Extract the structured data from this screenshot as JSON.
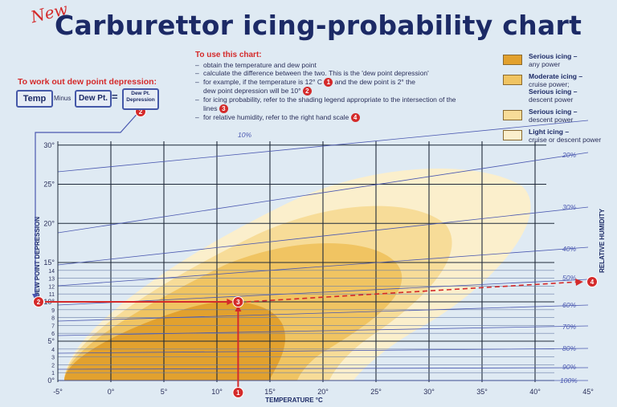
{
  "new_tag": "New",
  "title": "Carburettor icing-probability chart",
  "instructions": {
    "heading": "To use this chart:",
    "steps": [
      "obtain the temperature and dew point",
      "calculate the difference between the two. This is the 'dew point depression'",
      "for example, if the temperature is 12° C",
      "and the dew point is 2° the",
      "dew point depression will be 10°",
      "for icing probability, refer to the shading legend appropriate to the intersection of the lines",
      "for relative humidity, refer to the right hand scale"
    ]
  },
  "dew_point_formula": {
    "heading": "To work out dew point depression:",
    "temp_label": "Temp",
    "minus_label": "Minus",
    "dewpt_label": "Dew Pt.",
    "equals": "=",
    "result_label": "Dew Pt. Depression"
  },
  "legend": [
    {
      "title": "Serious icing –",
      "desc": "any power",
      "color": "#e2a12e"
    },
    {
      "title": "Moderate icing –",
      "desc": "cruise power;",
      "title2": "Serious icing –",
      "desc2": "descent power",
      "color": "#f0c462"
    },
    {
      "title": "Serious icing –",
      "desc": "descent power",
      "color": "#f7dc98"
    },
    {
      "title": "Light icing –",
      "desc": "cruise or descent power",
      "color": "#fbefcc"
    }
  ],
  "markers": {
    "temp": "1",
    "dewpoint": "2",
    "intersection": "3",
    "humidity": "4"
  },
  "chart_data": {
    "type": "area",
    "xlabel": "TEMPERATURE °C",
    "ylabel": "DEW POINT DEPRESSION",
    "y2label": "RELATIVE HUMIDITY",
    "xlim": [
      -5,
      45
    ],
    "ylim": [
      0,
      30
    ],
    "x_ticks": [
      "-5°",
      "0°",
      "5°",
      "10°",
      "15°",
      "20°",
      "25°",
      "30°",
      "35°",
      "40°",
      "45°"
    ],
    "y_ticks": [
      "0°",
      "1",
      "2",
      "3",
      "4",
      "5°",
      "6",
      "7",
      "8",
      "9",
      "10°",
      "11",
      "12",
      "13",
      "14",
      "15°",
      "20°",
      "25°",
      "30°"
    ],
    "humidity_lines": [
      "10%",
      "20%",
      "30%",
      "40%",
      "50%",
      "60%",
      "70%",
      "80%",
      "90%",
      "100%"
    ],
    "zones": [
      {
        "name": "Light icing",
        "color": "#fbefcc"
      },
      {
        "name": "Serious icing – descent power",
        "color": "#f7dc98"
      },
      {
        "name": "Moderate icing – cruise power; Serious icing – descent power",
        "color": "#f0c462"
      },
      {
        "name": "Serious icing – any power",
        "color": "#e2a12e"
      }
    ],
    "example": {
      "temperature": 12,
      "dew_point_depression": 10,
      "relative_humidity": 50
    }
  }
}
